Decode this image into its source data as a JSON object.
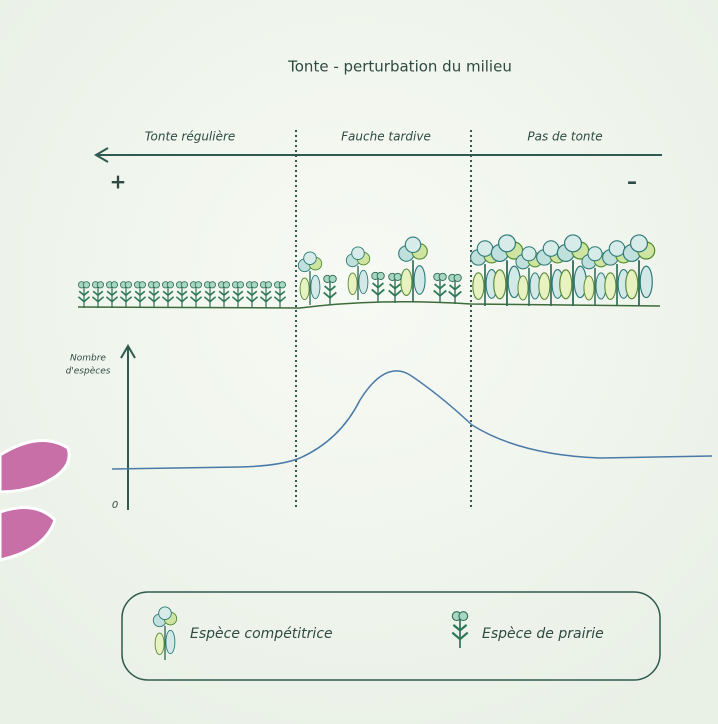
{
  "title": "Tonte - perturbation du milieu",
  "zones": [
    {
      "label": "Tonte régulière"
    },
    {
      "label": "Fauche tardive"
    },
    {
      "label": "Pas de tonte"
    }
  ],
  "gradient": {
    "left": "+",
    "right": "–"
  },
  "y_axis": {
    "label_lines": [
      "Nombre",
      "d'espèces"
    ],
    "zero": "0"
  },
  "legend": [
    {
      "label": "Espèce compétitrice"
    },
    {
      "label": "Espèce de prairie"
    }
  ]
}
